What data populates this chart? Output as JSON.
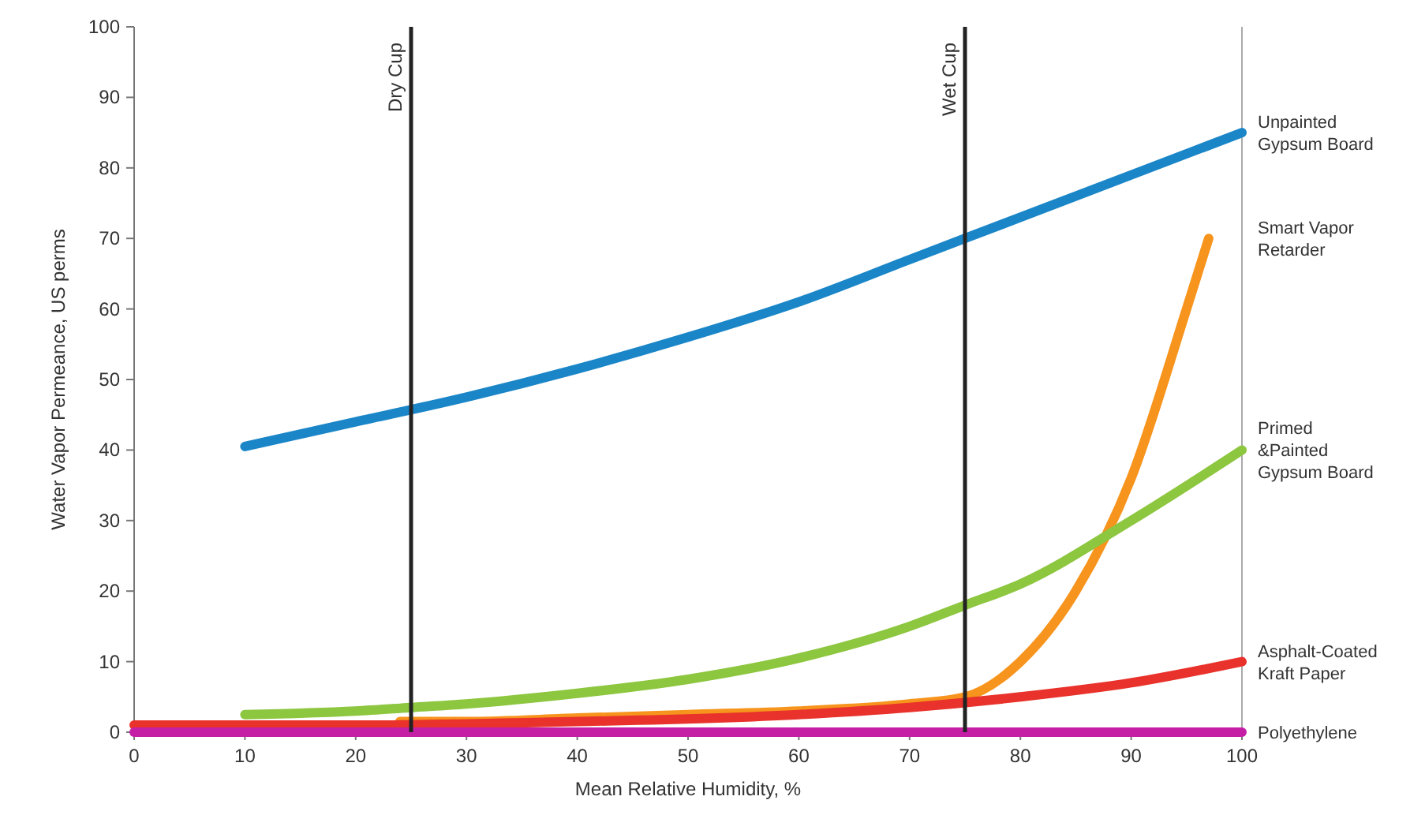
{
  "chart_data": {
    "type": "line",
    "xlabel": "Mean Relative Humidity, %",
    "ylabel": "Water Vapor Permeance, US perms",
    "xlim": [
      0,
      100
    ],
    "xticks": [
      0,
      10,
      20,
      30,
      40,
      50,
      60,
      70,
      80,
      90,
      100
    ],
    "ylim": [
      0,
      100
    ],
    "yticks": [
      0,
      10,
      20,
      30,
      40,
      50,
      60,
      70,
      80,
      90,
      100
    ],
    "grid": false,
    "marker": "none",
    "line_style": "solid",
    "ref_lines": [
      {
        "axis": "x",
        "value": 25,
        "label": "Dry Cup",
        "color": "#222222"
      },
      {
        "axis": "x",
        "value": 75,
        "label": "Wet Cup",
        "color": "#222222"
      }
    ],
    "series": [
      {
        "name": "Unpainted Gypsum Board",
        "color": "#1a86c8",
        "x": [
          10,
          20,
          30,
          40,
          50,
          60,
          70,
          80,
          90,
          100
        ],
        "values": [
          40.5,
          44,
          47.5,
          51.5,
          56,
          61,
          67,
          73,
          79,
          85
        ]
      },
      {
        "name": "Smart Vapor Retarder",
        "color": "#f7941d",
        "x": [
          24,
          30,
          40,
          50,
          60,
          70,
          75,
          80,
          85,
          90,
          95,
          97
        ],
        "values": [
          1.5,
          1.5,
          2,
          2.5,
          3,
          4,
          5,
          10,
          20,
          36,
          60,
          70
        ]
      },
      {
        "name": "Primed &Painted Gypsum Board",
        "color": "#8dc63f",
        "x": [
          10,
          20,
          25,
          30,
          40,
          50,
          60,
          70,
          75,
          80,
          90,
          100
        ],
        "values": [
          2.5,
          3,
          3.5,
          4,
          5.5,
          7.5,
          10.5,
          15,
          18,
          21,
          30,
          40
        ]
      },
      {
        "name": "Asphalt-Coated Kraft Paper",
        "color": "#e8322b",
        "x": [
          0,
          20,
          40,
          60,
          70,
          80,
          90,
          100
        ],
        "values": [
          1,
          1,
          1.5,
          2.5,
          3.5,
          5,
          7,
          10
        ]
      },
      {
        "name": "Polyethylene",
        "color": "#c51fa6",
        "x": [
          0,
          100
        ],
        "values": [
          0,
          0
        ]
      }
    ]
  }
}
